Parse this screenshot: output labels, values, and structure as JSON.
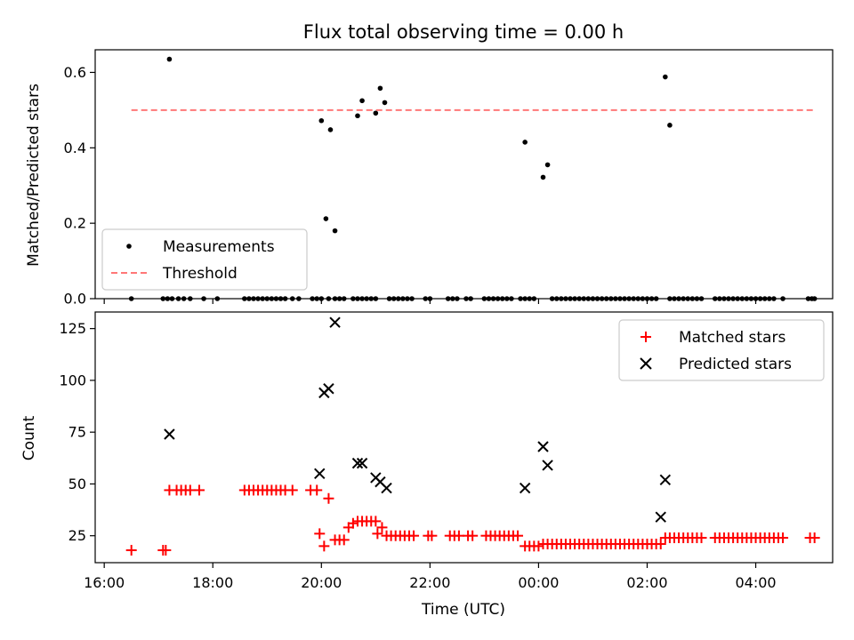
{
  "chart_data": [
    {
      "type": "scatter",
      "title": "Flux total observing time = 0.00 h",
      "xlabel": "",
      "ylabel": "Matched/Predicted stars",
      "xlim": [
        "15:50",
        "05:25"
      ],
      "ylim": [
        0,
        0.66
      ],
      "yticks": [
        0.0,
        0.2,
        0.4,
        0.6
      ],
      "ytick_labels": [
        "0.0",
        "0.2",
        "0.4",
        "0.6"
      ],
      "xticks": [
        "16:00",
        "18:00",
        "20:00",
        "22:00",
        "00:00",
        "02:00",
        "04:00"
      ],
      "legend": {
        "position": "lower-left",
        "entries": [
          "Measurements",
          "Threshold"
        ]
      },
      "threshold": {
        "name": "Threshold",
        "value": 0.5,
        "x_range": [
          "16:30",
          "05:05"
        ],
        "color": "#ff7777"
      },
      "series": [
        {
          "name": "Measurements",
          "color": "#000000",
          "points": [
            [
              "16:30",
              0
            ],
            [
              "17:05",
              0
            ],
            [
              "17:10",
              0
            ],
            [
              "17:15",
              0
            ],
            [
              "17:22",
              0
            ],
            [
              "17:28",
              0
            ],
            [
              "17:35",
              0
            ],
            [
              "17:50",
              0
            ],
            [
              "18:05",
              0
            ],
            [
              "18:35",
              0
            ],
            [
              "18:40",
              0
            ],
            [
              "18:45",
              0
            ],
            [
              "18:50",
              0
            ],
            [
              "18:55",
              0
            ],
            [
              "19:00",
              0
            ],
            [
              "19:05",
              0
            ],
            [
              "19:10",
              0
            ],
            [
              "19:15",
              0
            ],
            [
              "19:20",
              0
            ],
            [
              "19:28",
              0
            ],
            [
              "19:35",
              0
            ],
            [
              "19:50",
              0
            ],
            [
              "19:55",
              0
            ],
            [
              "20:00",
              0
            ],
            [
              "20:08",
              0
            ],
            [
              "20:15",
              0
            ],
            [
              "20:20",
              0
            ],
            [
              "20:25",
              0
            ],
            [
              "20:35",
              0
            ],
            [
              "20:40",
              0
            ],
            [
              "20:45",
              0
            ],
            [
              "20:50",
              0
            ],
            [
              "20:55",
              0
            ],
            [
              "21:00",
              0
            ],
            [
              "21:15",
              0
            ],
            [
              "21:20",
              0
            ],
            [
              "21:25",
              0
            ],
            [
              "21:30",
              0
            ],
            [
              "21:35",
              0
            ],
            [
              "21:40",
              0
            ],
            [
              "21:55",
              0
            ],
            [
              "22:00",
              0
            ],
            [
              "22:20",
              0
            ],
            [
              "22:25",
              0
            ],
            [
              "22:30",
              0
            ],
            [
              "22:40",
              0
            ],
            [
              "22:45",
              0
            ],
            [
              "23:00",
              0
            ],
            [
              "23:05",
              0
            ],
            [
              "23:10",
              0
            ],
            [
              "23:15",
              0
            ],
            [
              "23:20",
              0
            ],
            [
              "23:25",
              0
            ],
            [
              "23:30",
              0
            ],
            [
              "23:40",
              0
            ],
            [
              "23:45",
              0
            ],
            [
              "23:50",
              0
            ],
            [
              "23:55",
              0
            ],
            [
              "00:15",
              0
            ],
            [
              "00:20",
              0
            ],
            [
              "00:25",
              0
            ],
            [
              "00:30",
              0
            ],
            [
              "00:35",
              0
            ],
            [
              "00:40",
              0
            ],
            [
              "00:45",
              0
            ],
            [
              "00:50",
              0
            ],
            [
              "00:55",
              0
            ],
            [
              "01:00",
              0
            ],
            [
              "01:05",
              0
            ],
            [
              "01:10",
              0
            ],
            [
              "01:15",
              0
            ],
            [
              "01:20",
              0
            ],
            [
              "01:25",
              0
            ],
            [
              "01:30",
              0
            ],
            [
              "01:35",
              0
            ],
            [
              "01:40",
              0
            ],
            [
              "01:45",
              0
            ],
            [
              "01:50",
              0
            ],
            [
              "01:55",
              0
            ],
            [
              "02:00",
              0
            ],
            [
              "02:05",
              0
            ],
            [
              "02:10",
              0
            ],
            [
              "02:25",
              0
            ],
            [
              "02:30",
              0
            ],
            [
              "02:35",
              0
            ],
            [
              "02:40",
              0
            ],
            [
              "02:45",
              0
            ],
            [
              "02:50",
              0
            ],
            [
              "02:55",
              0
            ],
            [
              "03:00",
              0
            ],
            [
              "03:15",
              0
            ],
            [
              "03:20",
              0
            ],
            [
              "03:25",
              0
            ],
            [
              "03:30",
              0
            ],
            [
              "03:35",
              0
            ],
            [
              "03:40",
              0
            ],
            [
              "03:45",
              0
            ],
            [
              "03:50",
              0
            ],
            [
              "03:55",
              0
            ],
            [
              "04:00",
              0
            ],
            [
              "04:05",
              0
            ],
            [
              "04:10",
              0
            ],
            [
              "04:15",
              0
            ],
            [
              "04:20",
              0
            ],
            [
              "04:30",
              0
            ],
            [
              "04:58",
              0
            ],
            [
              "05:02",
              0
            ],
            [
              "05:05",
              0
            ],
            [
              "17:12",
              0.635
            ],
            [
              "20:00",
              0.472
            ],
            [
              "20:05",
              0.212
            ],
            [
              "20:10",
              0.448
            ],
            [
              "20:15",
              0.18
            ],
            [
              "20:40",
              0.485
            ],
            [
              "20:45",
              0.525
            ],
            [
              "21:00",
              0.492
            ],
            [
              "21:05",
              0.558
            ],
            [
              "21:10",
              0.52
            ],
            [
              "23:45",
              0.415
            ],
            [
              "00:05",
              0.322
            ],
            [
              "00:10",
              0.355
            ],
            [
              "02:20",
              0.588
            ],
            [
              "02:25",
              0.46
            ]
          ]
        }
      ]
    },
    {
      "type": "scatter",
      "title": "",
      "xlabel": "Time (UTC)",
      "ylabel": "Count",
      "xlim": [
        "15:50",
        "05:25"
      ],
      "ylim": [
        12,
        133
      ],
      "yticks": [
        25,
        50,
        75,
        100,
        125
      ],
      "ytick_labels": [
        "25",
        "50",
        "75",
        "100",
        "125"
      ],
      "xticks": [
        "16:00",
        "18:00",
        "20:00",
        "22:00",
        "00:00",
        "02:00",
        "04:00"
      ],
      "legend": {
        "position": "top-right",
        "entries": [
          "Matched stars",
          "Predicted stars"
        ]
      },
      "series": [
        {
          "name": "Matched stars",
          "marker": "plus",
          "color": "#ff0000",
          "points": [
            [
              "16:30",
              18
            ],
            [
              "17:05",
              18
            ],
            [
              "17:08",
              18
            ],
            [
              "17:12",
              47
            ],
            [
              "17:20",
              47
            ],
            [
              "17:25",
              47
            ],
            [
              "17:30",
              47
            ],
            [
              "17:35",
              47
            ],
            [
              "17:45",
              47
            ],
            [
              "18:35",
              47
            ],
            [
              "18:40",
              47
            ],
            [
              "18:45",
              47
            ],
            [
              "18:50",
              47
            ],
            [
              "18:55",
              47
            ],
            [
              "19:00",
              47
            ],
            [
              "19:05",
              47
            ],
            [
              "19:10",
              47
            ],
            [
              "19:15",
              47
            ],
            [
              "19:20",
              47
            ],
            [
              "19:28",
              47
            ],
            [
              "19:48",
              47
            ],
            [
              "19:55",
              47
            ],
            [
              "19:58",
              26
            ],
            [
              "20:03",
              20
            ],
            [
              "20:08",
              43
            ],
            [
              "20:15",
              23
            ],
            [
              "20:20",
              23
            ],
            [
              "20:25",
              23
            ],
            [
              "20:30",
              29
            ],
            [
              "20:35",
              31
            ],
            [
              "20:40",
              32
            ],
            [
              "20:45",
              32
            ],
            [
              "20:50",
              32
            ],
            [
              "20:55",
              32
            ],
            [
              "21:00",
              32
            ],
            [
              "21:02",
              26
            ],
            [
              "21:07",
              29
            ],
            [
              "21:12",
              25
            ],
            [
              "21:17",
              25
            ],
            [
              "21:22",
              25
            ],
            [
              "21:27",
              25
            ],
            [
              "21:32",
              25
            ],
            [
              "21:37",
              25
            ],
            [
              "21:42",
              25
            ],
            [
              "21:58",
              25
            ],
            [
              "22:02",
              25
            ],
            [
              "22:22",
              25
            ],
            [
              "22:27",
              25
            ],
            [
              "22:32",
              25
            ],
            [
              "22:42",
              25
            ],
            [
              "22:47",
              25
            ],
            [
              "23:02",
              25
            ],
            [
              "23:07",
              25
            ],
            [
              "23:12",
              25
            ],
            [
              "23:17",
              25
            ],
            [
              "23:22",
              25
            ],
            [
              "23:27",
              25
            ],
            [
              "23:32",
              25
            ],
            [
              "23:37",
              25
            ],
            [
              "23:45",
              20
            ],
            [
              "23:50",
              20
            ],
            [
              "23:55",
              20
            ],
            [
              "00:00",
              20
            ],
            [
              "00:05",
              21
            ],
            [
              "00:10",
              21
            ],
            [
              "00:15",
              21
            ],
            [
              "00:20",
              21
            ],
            [
              "00:25",
              21
            ],
            [
              "00:30",
              21
            ],
            [
              "00:35",
              21
            ],
            [
              "00:40",
              21
            ],
            [
              "00:45",
              21
            ],
            [
              "00:50",
              21
            ],
            [
              "00:55",
              21
            ],
            [
              "01:00",
              21
            ],
            [
              "01:05",
              21
            ],
            [
              "01:10",
              21
            ],
            [
              "01:15",
              21
            ],
            [
              "01:20",
              21
            ],
            [
              "01:25",
              21
            ],
            [
              "01:30",
              21
            ],
            [
              "01:35",
              21
            ],
            [
              "01:40",
              21
            ],
            [
              "01:45",
              21
            ],
            [
              "01:50",
              21
            ],
            [
              "01:55",
              21
            ],
            [
              "02:00",
              21
            ],
            [
              "02:05",
              21
            ],
            [
              "02:10",
              21
            ],
            [
              "02:15",
              21
            ],
            [
              "02:20",
              24
            ],
            [
              "02:25",
              24
            ],
            [
              "02:30",
              24
            ],
            [
              "02:35",
              24
            ],
            [
              "02:40",
              24
            ],
            [
              "02:45",
              24
            ],
            [
              "02:50",
              24
            ],
            [
              "02:55",
              24
            ],
            [
              "03:00",
              24
            ],
            [
              "03:15",
              24
            ],
            [
              "03:20",
              24
            ],
            [
              "03:25",
              24
            ],
            [
              "03:30",
              24
            ],
            [
              "03:35",
              24
            ],
            [
              "03:40",
              24
            ],
            [
              "03:45",
              24
            ],
            [
              "03:50",
              24
            ],
            [
              "03:55",
              24
            ],
            [
              "04:00",
              24
            ],
            [
              "04:05",
              24
            ],
            [
              "04:10",
              24
            ],
            [
              "04:15",
              24
            ],
            [
              "04:20",
              24
            ],
            [
              "04:25",
              24
            ],
            [
              "04:30",
              24
            ],
            [
              "05:00",
              24
            ],
            [
              "05:05",
              24
            ]
          ]
        },
        {
          "name": "Predicted stars",
          "marker": "x",
          "color": "#000000",
          "points": [
            [
              "17:12",
              74
            ],
            [
              "19:58",
              55
            ],
            [
              "20:03",
              94
            ],
            [
              "20:08",
              96
            ],
            [
              "20:15",
              128
            ],
            [
              "20:40",
              60
            ],
            [
              "20:45",
              60
            ],
            [
              "21:00",
              53
            ],
            [
              "21:05",
              51
            ],
            [
              "21:12",
              48
            ],
            [
              "23:45",
              48
            ],
            [
              "00:05",
              68
            ],
            [
              "00:10",
              59
            ],
            [
              "02:15",
              34
            ],
            [
              "02:20",
              52
            ]
          ]
        }
      ]
    }
  ]
}
